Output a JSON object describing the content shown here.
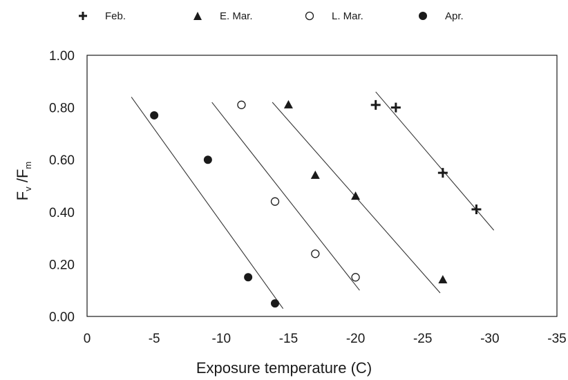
{
  "chart_data": {
    "type": "scatter",
    "title": "",
    "xlabel": "Exposure temperature (C)",
    "ylabel_main": "F",
    "ylabel_sub1": "v",
    "ylabel_mid": " /F",
    "ylabel_sub2": "m",
    "xlim": [
      0,
      -35
    ],
    "ylim": [
      0,
      1.0
    ],
    "x_ticks": [
      "0",
      "-5",
      "-10",
      "-15",
      "-20",
      "-25",
      "-30",
      "-35"
    ],
    "x_tick_values": [
      0,
      -5,
      -10,
      -15,
      -20,
      -25,
      -30,
      -35
    ],
    "y_ticks": [
      "0.00",
      "0.20",
      "0.40",
      "0.60",
      "0.80",
      "1.00"
    ],
    "y_tick_values": [
      0,
      0.2,
      0.4,
      0.6,
      0.8,
      1.0
    ],
    "grid": false,
    "legend_position": "top",
    "series": [
      {
        "name": "Feb.",
        "marker": "plus",
        "x": [
          -21.5,
          -23,
          -26.5,
          -29
        ],
        "y": [
          0.81,
          0.8,
          0.55,
          0.41
        ],
        "fit_line": {
          "x": [
            -21.5,
            -30.3
          ],
          "y": [
            0.86,
            0.33
          ]
        }
      },
      {
        "name": "E. Mar.",
        "marker": "filled-triangle",
        "x": [
          -15,
          -17,
          -20,
          -26.5
        ],
        "y": [
          0.81,
          0.54,
          0.46,
          0.14
        ],
        "fit_line": {
          "x": [
            -13.8,
            -26.3
          ],
          "y": [
            0.82,
            0.09
          ]
        }
      },
      {
        "name": "L. Mar.",
        "marker": "open-circle",
        "x": [
          -11.5,
          -14,
          -17,
          -20
        ],
        "y": [
          0.81,
          0.44,
          0.24,
          0.15
        ],
        "fit_line": {
          "x": [
            -9.3,
            -20.3
          ],
          "y": [
            0.82,
            0.1
          ]
        }
      },
      {
        "name": "Apr.",
        "marker": "filled-circle",
        "x": [
          -5,
          -9,
          -12,
          -14
        ],
        "y": [
          0.77,
          0.6,
          0.15,
          0.05
        ],
        "fit_line": {
          "x": [
            -3.3,
            -14.6
          ],
          "y": [
            0.84,
            0.03
          ]
        }
      }
    ],
    "colors": {
      "marker": "#1a1a1a",
      "line": "#333333",
      "axis": "#1a1a1a"
    }
  }
}
